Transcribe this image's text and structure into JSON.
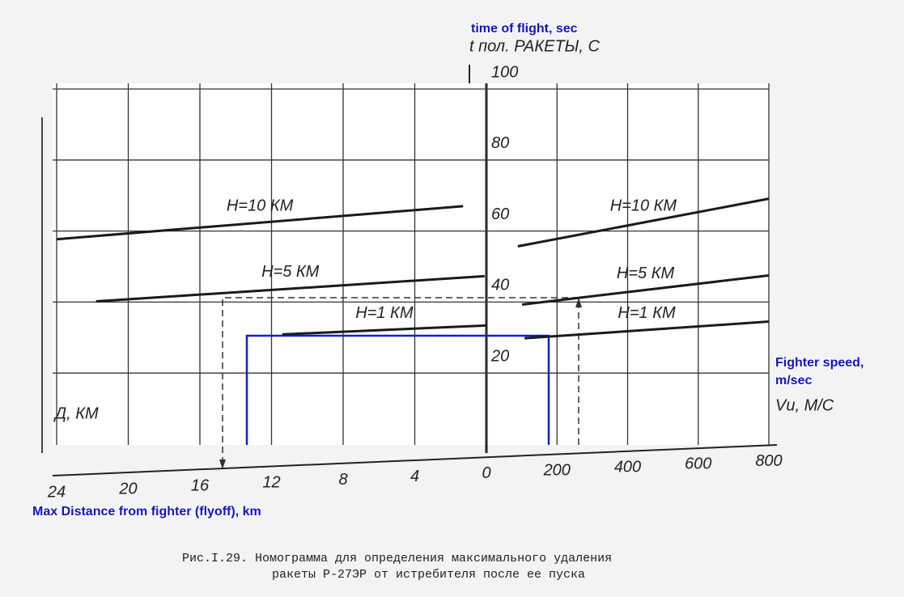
{
  "chart_data": {
    "type": "nomogram",
    "annotations": [
      "time of flight, sec",
      "Fighter speed, m/sec",
      "Max Distance from fighter (flyoff), km"
    ],
    "y_label": "t пол. РАКЕТЫ, С",
    "ylim": [
      0,
      100
    ],
    "yticks": [
      20,
      40,
      60,
      80,
      100
    ],
    "left_axis": {
      "label": "Д, КМ",
      "xlim": [
        24,
        0
      ],
      "xticks": [
        24,
        20,
        16,
        12,
        8,
        4,
        0
      ]
    },
    "right_axis": {
      "label": "Vи, М/С",
      "xlim": [
        0,
        800
      ],
      "xticks": [
        200,
        400,
        600,
        800
      ]
    },
    "series": [
      {
        "name": "H=10 КМ",
        "panel": "left",
        "x": [
          24.0,
          1.3
        ],
        "values": [
          57.7,
          67.0
        ]
      },
      {
        "name": "H=5 КМ",
        "panel": "left",
        "x": [
          21.8,
          0.1
        ],
        "values": [
          40.2,
          47.3
        ]
      },
      {
        "name": "H=1 КМ",
        "panel": "left",
        "x": [
          11.4,
          0
        ],
        "values": [
          30.9,
          33.4
        ]
      },
      {
        "name": "H=10 КМ",
        "panel": "right",
        "x": [
          89,
          800
        ],
        "values": [
          55.7,
          69.1
        ]
      },
      {
        "name": "H=5 КМ",
        "panel": "right",
        "x": [
          101,
          800
        ],
        "values": [
          39.3,
          47.5
        ]
      },
      {
        "name": "H=1 КМ",
        "panel": "right",
        "x": [
          108,
          800
        ],
        "values": [
          29.8,
          34.5
        ]
      }
    ],
    "caption": [
      "Рис.I.29. Номограмма для определения максимального удаления",
      "ракеты Р-27ЭР от истребителя после ее пуска"
    ]
  }
}
